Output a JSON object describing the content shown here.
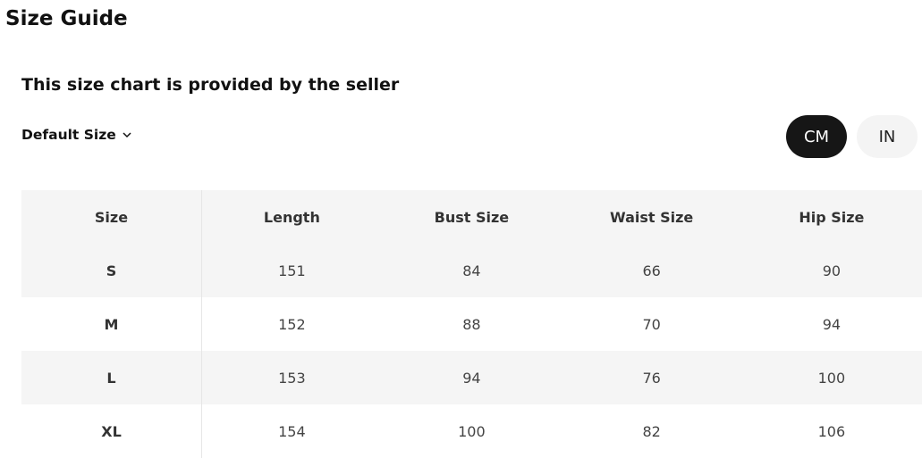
{
  "title": "Size Guide",
  "subtitle": "This size chart is provided by the seller",
  "size_select": {
    "label": "Default Size",
    "icon": "chevron-down-icon"
  },
  "units": {
    "cm": "CM",
    "in": "IN",
    "selected": "CM"
  },
  "table": {
    "headers": [
      "Size",
      "Length",
      "Bust Size",
      "Waist Size",
      "Hip Size"
    ],
    "rows": [
      [
        "S",
        "151",
        "84",
        "66",
        "90"
      ],
      [
        "M",
        "152",
        "88",
        "70",
        "94"
      ],
      [
        "L",
        "153",
        "94",
        "76",
        "100"
      ],
      [
        "XL",
        "154",
        "100",
        "82",
        "106"
      ]
    ]
  }
}
